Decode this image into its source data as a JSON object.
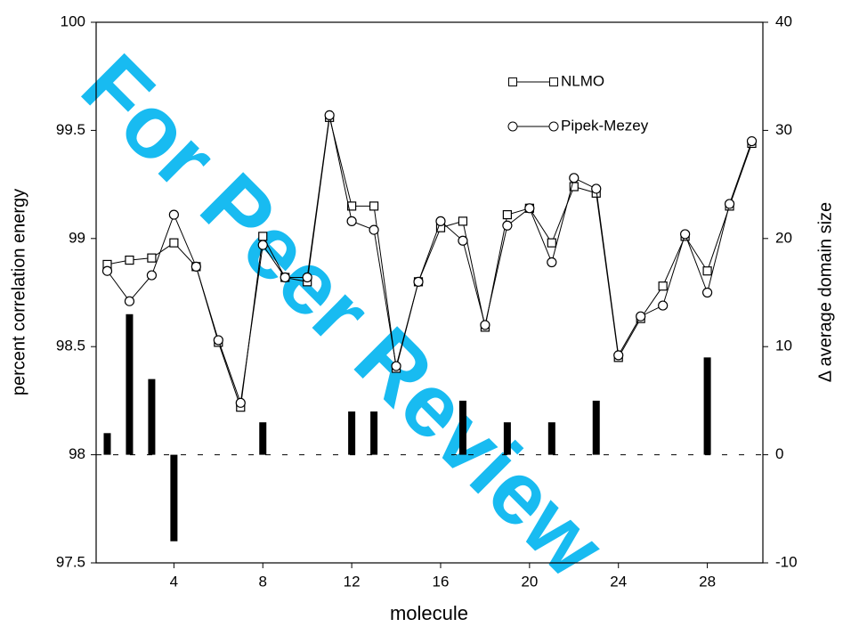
{
  "watermark": "For Peer Review",
  "chart_data": {
    "type": "line",
    "xlabel": "molecule",
    "ylabel": "percent correlation energy",
    "y2label": "Δ average domain size",
    "x": [
      1,
      2,
      3,
      4,
      5,
      6,
      7,
      8,
      9,
      10,
      11,
      12,
      13,
      14,
      15,
      16,
      17,
      18,
      19,
      20,
      21,
      22,
      23,
      24,
      25,
      26,
      27,
      28,
      29,
      30
    ],
    "xlim": [
      0.5,
      30.5
    ],
    "xticks": [
      4,
      8,
      12,
      16,
      20,
      24,
      28
    ],
    "ylim": [
      97.5,
      100
    ],
    "yticks": [
      97.5,
      98,
      98.5,
      99,
      99.5,
      100
    ],
    "y2lim": [
      -10,
      40
    ],
    "y2ticks": [
      -10,
      0,
      10,
      20,
      30,
      40
    ],
    "series": [
      {
        "name": "NLMO",
        "marker": "square",
        "color": "#000000",
        "values": [
          98.88,
          98.9,
          98.91,
          98.98,
          98.87,
          98.52,
          98.22,
          99.01,
          98.82,
          98.8,
          99.56,
          99.15,
          99.15,
          98.4,
          98.8,
          99.05,
          99.08,
          98.59,
          99.11,
          99.14,
          98.98,
          99.24,
          99.21,
          98.45,
          98.63,
          98.78,
          99.01,
          98.85,
          99.15,
          99.44
        ]
      },
      {
        "name": "Pipek-Mezey",
        "marker": "circle",
        "color": "#000000",
        "values": [
          98.85,
          98.71,
          98.83,
          99.11,
          98.87,
          98.53,
          98.24,
          98.97,
          98.82,
          98.82,
          99.57,
          99.08,
          99.04,
          98.41,
          98.8,
          99.08,
          98.99,
          98.6,
          99.06,
          99.14,
          98.89,
          99.28,
          99.23,
          98.46,
          98.64,
          98.69,
          99.02,
          98.75,
          99.16,
          99.45
        ]
      },
      {
        "type": "bar",
        "axis": "y2",
        "color": "#000000",
        "values": [
          2,
          13,
          7,
          -8,
          0,
          0,
          0,
          3,
          0,
          0,
          0,
          4,
          4,
          0,
          0,
          0,
          5,
          0,
          3,
          0,
          3,
          0,
          5,
          0,
          0,
          0,
          0,
          9,
          0,
          0
        ]
      }
    ]
  }
}
